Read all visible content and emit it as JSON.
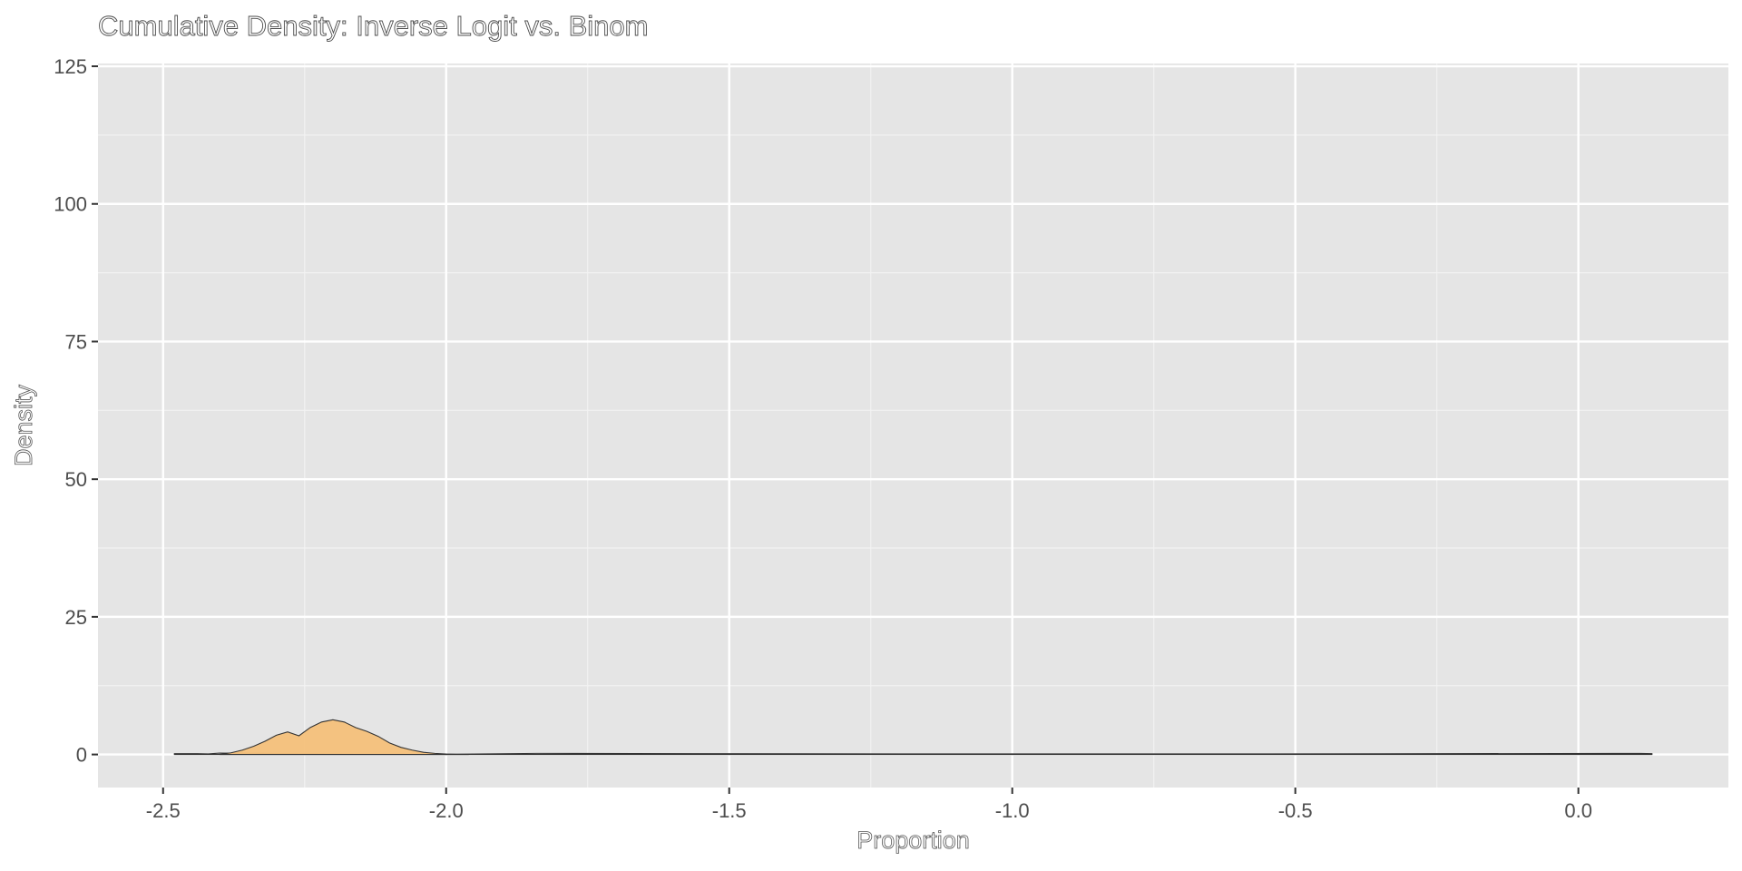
{
  "chart_data": {
    "type": "area",
    "title": "Cumulative Density: Inverse Logit vs. Binom",
    "xlabel": "Proportion",
    "ylabel": "Density",
    "xlim": [
      -2.615,
      0.265
    ],
    "ylim": [
      -6,
      125.5
    ],
    "x_ticks": [
      -2.5,
      -2.0,
      -1.5,
      -1.0,
      -0.5,
      0.0
    ],
    "x_tick_labels": [
      "-2.5",
      "-2.0",
      "-1.5",
      "-1.0",
      "-0.5",
      "0.0"
    ],
    "y_ticks": [
      0,
      25,
      50,
      75,
      100,
      125
    ],
    "y_tick_labels": [
      "0",
      "25",
      "50",
      "75",
      "100",
      "125"
    ],
    "grid": true,
    "legend": "none",
    "colors": {
      "panel": "#e5e5e5",
      "grid_major": "#ffffff",
      "grid_minor": "#f2f2f2",
      "fill_main": "#f4c07a",
      "outline": "#333333",
      "fill_baseline": "#d9d9d9"
    },
    "series": [
      {
        "x": [
          -2.4,
          -2.38,
          -2.36,
          -2.34,
          -2.32,
          -2.3,
          -2.28,
          -2.26,
          -2.24,
          -2.22,
          -2.2,
          -2.18,
          -2.16,
          -2.14,
          -2.12,
          -2.1,
          -2.08,
          -2.06,
          -2.04,
          -2.02,
          -2.0,
          -1.98,
          -1.96
        ],
        "y": [
          0,
          0.3,
          0.8,
          1.5,
          2.4,
          3.5,
          4.1,
          3.4,
          4.9,
          5.9,
          6.3,
          5.9,
          4.9,
          4.2,
          3.3,
          2.1,
          1.3,
          0.8,
          0.4,
          0.2,
          0.08,
          0.03,
          0
        ]
      },
      {
        "x": [
          -2.48,
          -2.46,
          -2.44,
          -2.42,
          -2.4,
          -2.2,
          -2.0,
          -1.84,
          -1.2,
          -0.54,
          0.11,
          0.13
        ],
        "y": [
          0.15,
          0.15,
          0.15,
          0.1,
          0.25,
          0.1,
          0.05,
          0.2,
          0.1,
          0.1,
          0.2,
          0.15
        ]
      }
    ]
  }
}
